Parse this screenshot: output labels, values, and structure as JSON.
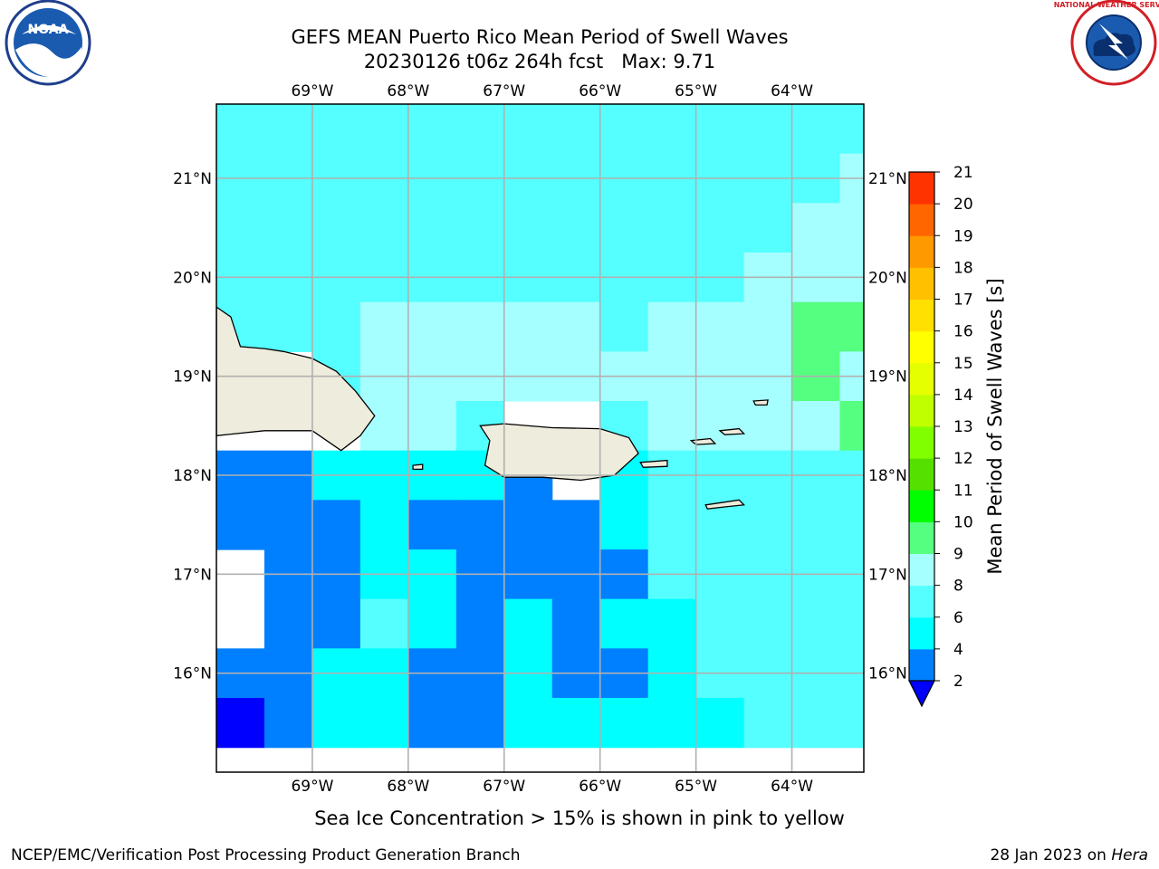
{
  "header": {
    "title_line1": "GEFS MEAN Puerto Rico Mean Period of Swell Waves",
    "title_line2": "20230126 t06z 264h fcst   Max: 9.71",
    "noaa_logo_text": "NOAA",
    "nws_logo_text": "NATIONAL WEATHER SERVICE"
  },
  "chart_data": {
    "type": "heatmap",
    "title": "GEFS MEAN Puerto Rico Mean Period of Swell Waves",
    "subtitle": "20230126 t06z 264h fcst   Max: 9.71",
    "max_value": 9.71,
    "xlim": [
      -70.0,
      -63.25
    ],
    "ylim": [
      15.0,
      21.75
    ],
    "grid": true,
    "x_tick_values": [
      -69,
      -68,
      -67,
      -66,
      -65,
      -64
    ],
    "y_tick_values": [
      16,
      17,
      18,
      19,
      20,
      21
    ],
    "x_tick_labels": [
      "69°W",
      "68°W",
      "67°W",
      "66°W",
      "65°W",
      "64°W"
    ],
    "y_tick_labels": [
      "16°N",
      "17°N",
      "18°N",
      "19°N",
      "20°N",
      "21°N"
    ],
    "colorbar": {
      "label": "Mean Period of Swell Waves [s]",
      "placement": "right",
      "levels": [
        2,
        4,
        6,
        8,
        9,
        10,
        11,
        12,
        13,
        14,
        15,
        16,
        17,
        18,
        19,
        20,
        21
      ],
      "tick_labels": [
        "2",
        "4",
        "6",
        "8",
        "9",
        "10",
        "11",
        "12",
        "13",
        "14",
        "15",
        "16",
        "17",
        "18",
        "19",
        "20",
        "21"
      ],
      "colors": [
        "#0080ff",
        "#00ffff",
        "#55ffff",
        "#a6ffff",
        "#55ff80",
        "#00ff00",
        "#55e000",
        "#80ff00",
        "#c0ff00",
        "#e6ff00",
        "#ffff00",
        "#ffe000",
        "#ffc000",
        "#ff9900",
        "#ff6600",
        "#ff3300"
      ],
      "under_color": "#0000ff"
    },
    "grid_lat": [
      21.5,
      21.0,
      20.5,
      20.0,
      19.5,
      19.0,
      18.5,
      18.0,
      17.5,
      17.0,
      16.5,
      16.0,
      15.5
    ],
    "grid_lon_start": -69.75,
    "grid_lon_step": 0.5,
    "values": [
      [
        6.8,
        6.8,
        6.8,
        6.8,
        7.0,
        6.8,
        6.8,
        6.8,
        6.8,
        6.8,
        6.8,
        6.8,
        6.9,
        7.0
      ],
      [
        6.5,
        6.6,
        6.7,
        6.8,
        6.8,
        6.9,
        6.9,
        6.9,
        7.0,
        7.0,
        7.0,
        7.2,
        7.6,
        8.2
      ],
      [
        6.3,
        6.5,
        6.6,
        6.8,
        7.0,
        7.0,
        7.0,
        7.0,
        7.0,
        7.2,
        7.3,
        7.5,
        8.0,
        8.3
      ],
      [
        6.5,
        6.8,
        7.2,
        7.5,
        7.5,
        7.6,
        7.4,
        7.4,
        7.5,
        7.5,
        7.8,
        8.0,
        8.4,
        8.6
      ],
      [
        7.0,
        7.4,
        7.8,
        8.0,
        8.2,
        8.1,
        8.3,
        8.0,
        7.9,
        8.0,
        8.4,
        8.6,
        9.2,
        9.4
      ],
      [
        null,
        null,
        7.8,
        8.3,
        8.4,
        8.2,
        8.3,
        8.4,
        8.3,
        8.5,
        8.8,
        8.8,
        9.3,
        8.9
      ],
      [
        null,
        null,
        null,
        8.1,
        8.0,
        7.9,
        null,
        null,
        7.9,
        8.4,
        8.6,
        8.5,
        8.6,
        9.1
      ],
      [
        3.0,
        3.2,
        4.6,
        5.6,
        5.5,
        5.0,
        3.0,
        null,
        5.2,
        6.5,
        6.6,
        6.8,
        7.0,
        7.2
      ],
      [
        2.5,
        3.0,
        3.5,
        4.0,
        3.5,
        3.0,
        2.5,
        2.2,
        4.8,
        6.5,
        6.3,
        6.6,
        6.5,
        6.8
      ],
      [
        null,
        2.5,
        3.3,
        5.0,
        4.5,
        3.5,
        3.0,
        3.0,
        3.5,
        6.0,
        6.6,
        6.8,
        7.0,
        7.0
      ],
      [
        null,
        2.3,
        3.4,
        6.0,
        5.5,
        3.5,
        5.0,
        3.8,
        4.0,
        5.0,
        6.1,
        6.5,
        6.8,
        6.9
      ],
      [
        2.2,
        3.0,
        4.0,
        4.0,
        3.5,
        3.5,
        4.0,
        3.6,
        3.5,
        5.0,
        6.0,
        6.2,
        6.5,
        6.8
      ],
      [
        1.6,
        3.0,
        4.5,
        4.0,
        3.8,
        3.6,
        5.0,
        4.0,
        5.0,
        5.0,
        5.5,
        6.3,
        6.2,
        6.6
      ]
    ]
  },
  "notes": {
    "sea_ice": "Sea Ice Concentration > 15% is shown in pink to yellow"
  },
  "footer": {
    "left": "NCEP/EMC/Verification Post Processing Product Generation Branch",
    "right_date": "28 Jan 2023 on ",
    "right_host": "Hera"
  }
}
